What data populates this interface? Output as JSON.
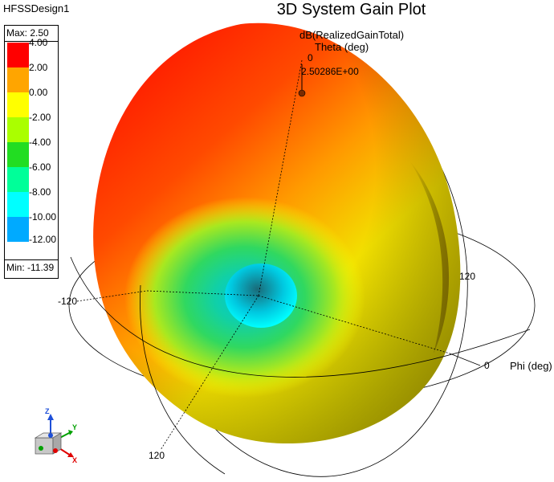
{
  "window": {
    "design_name": "HFSSDesign1",
    "plot_title": "3D System Gain Plot"
  },
  "plot": {
    "quantity_label": "dB(RealizedGainTotal)",
    "theta_axis_label": "Theta (deg)",
    "theta_zero_tick": "0",
    "marker_value": "2.50286E+00",
    "phi_axis_label": "Phi (deg)",
    "phi_ticks": {
      "right_120": "120",
      "left_minus_120": "-120",
      "right_0": "0",
      "bottom_120": "120"
    }
  },
  "legend": {
    "max_label": "Max: 2.50",
    "min_label": "Min: -11.39",
    "levels": [
      "4.00",
      "2.00",
      "0.00",
      "-2.00",
      "-4.00",
      "-6.00",
      "-8.00",
      "-10.00",
      "-12.00"
    ],
    "colors": [
      "#ff0000",
      "#ffa500",
      "#ffff00",
      "#aaff00",
      "#22dd22",
      "#00ff99",
      "#00ffff",
      "#00aaff",
      "#0000ff"
    ]
  },
  "triad": {
    "x_label": "X",
    "y_label": "Y",
    "z_label": "Z",
    "x_color": "#e00000",
    "y_color": "#00a000",
    "z_color": "#1e4fd8"
  }
}
